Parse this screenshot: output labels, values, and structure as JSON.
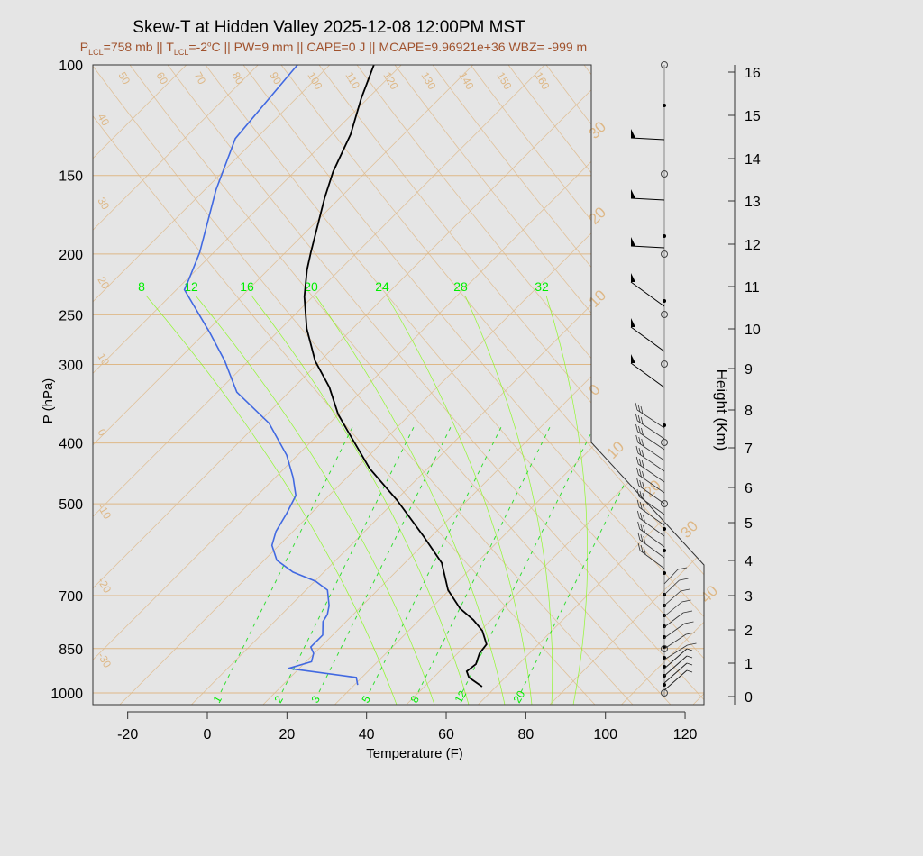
{
  "chart_data": {
    "type": "line",
    "title": "Skew-T at Hidden Valley 2025-12-08 12:00PM MST",
    "subtitle": {
      "p": "P",
      "p_sub": "LCL",
      "p_rest": "=758 mb || T",
      "t_sub": "LCL",
      "t_rest": "=-2",
      "deg": "o",
      "rest": "C || PW=9 mm || CAPE=0 J || MCAPE=9.96921e+36 WBZ= -999 m"
    },
    "xlabel": "Temperature (F)",
    "ylabel": "P (hPa)",
    "y2label": "Height (Km)",
    "y_scale": "log",
    "ylim": [
      1043,
      100
    ],
    "xlim": [
      -28,
      125
    ],
    "x_ticks": [
      "-20",
      "0",
      "20",
      "40",
      "60",
      "80",
      "100",
      "120"
    ],
    "x_tick_values": [
      -20,
      0,
      20,
      40,
      60,
      80,
      100,
      120
    ],
    "y_ticks": [
      "100",
      "150",
      "200",
      "250",
      "300",
      "400",
      "500",
      "700",
      "850",
      "1000"
    ],
    "y_tick_values": [
      100,
      150,
      200,
      250,
      300,
      400,
      500,
      700,
      850,
      1000
    ],
    "height_ticks": [
      "0",
      "1",
      "2",
      "3",
      "4",
      "5",
      "6",
      "7",
      "8",
      "9",
      "10",
      "11",
      "12",
      "13",
      "14",
      "15",
      "16"
    ],
    "isotherm_labels_left": [
      "40",
      "30",
      "20",
      "10",
      "0",
      "-10",
      "-20",
      "-30"
    ],
    "isotherm_labels_right": [
      "30",
      "20",
      "10",
      "0",
      "10",
      "20",
      "30",
      "40"
    ],
    "dry_adiabat_labels": [
      "50",
      "60",
      "70",
      "80",
      "90",
      "100",
      "110",
      "120",
      "130",
      "140",
      "150",
      "160"
    ],
    "moist_adiabat_labels": [
      "8",
      "12",
      "16",
      "20",
      "24",
      "28",
      "32"
    ],
    "mixing_ratio_labels": [
      "1",
      "2",
      "3",
      "5",
      "8",
      "12",
      "20"
    ],
    "colors": {
      "temperature": "#000000",
      "dewpoint": "#4169e1",
      "grid": "#deb887",
      "moist": "#7cfc00",
      "subtitle": "#a0522d"
    },
    "series": [
      {
        "key": "temperature",
        "p": [
          977,
          945,
          924,
          900,
          865,
          837,
          796,
          765,
          733,
          686,
          621,
          563,
          493,
          439,
          382,
          360,
          326,
          296,
          263,
          234,
          212,
          199,
          163,
          148,
          129,
          113,
          100
        ],
        "T": [
          64.5,
          58.9,
          56.8,
          57.3,
          55.5,
          55.0,
          50.5,
          45.5,
          39.2,
          31.7,
          23.3,
          12.0,
          -3.8,
          -18.6,
          -33.7,
          -40.1,
          -49.1,
          -59.3,
          -69.5,
          -78.1,
          -84.2,
          -87.6,
          -97.8,
          -102.3,
          -107.3,
          -113.7,
          -118.9
        ]
      },
      {
        "key": "dewpoint",
        "p": [
          971,
          945,
          914,
          892,
          865,
          845,
          809,
          770,
          750,
          726,
          686,
          664,
          642,
          615,
          582,
          553,
          518,
          485,
          454,
          418,
          372,
          332,
          296,
          267,
          228,
          220,
          199,
          158,
          131,
          100
        ],
        "T": [
          32.8,
          30.6,
          11.3,
          15.4,
          13.8,
          11.5,
          11.5,
          8.2,
          7.5,
          5.7,
          1.4,
          -3.8,
          -11.8,
          -18.8,
          -23.8,
          -26.3,
          -28.1,
          -30.3,
          -35.5,
          -42.8,
          -55.2,
          -71.1,
          -82.0,
          -92.8,
          -110.0,
          -111.4,
          -115.5,
          -127.2,
          -135.2,
          -138.1
        ]
      }
    ]
  }
}
